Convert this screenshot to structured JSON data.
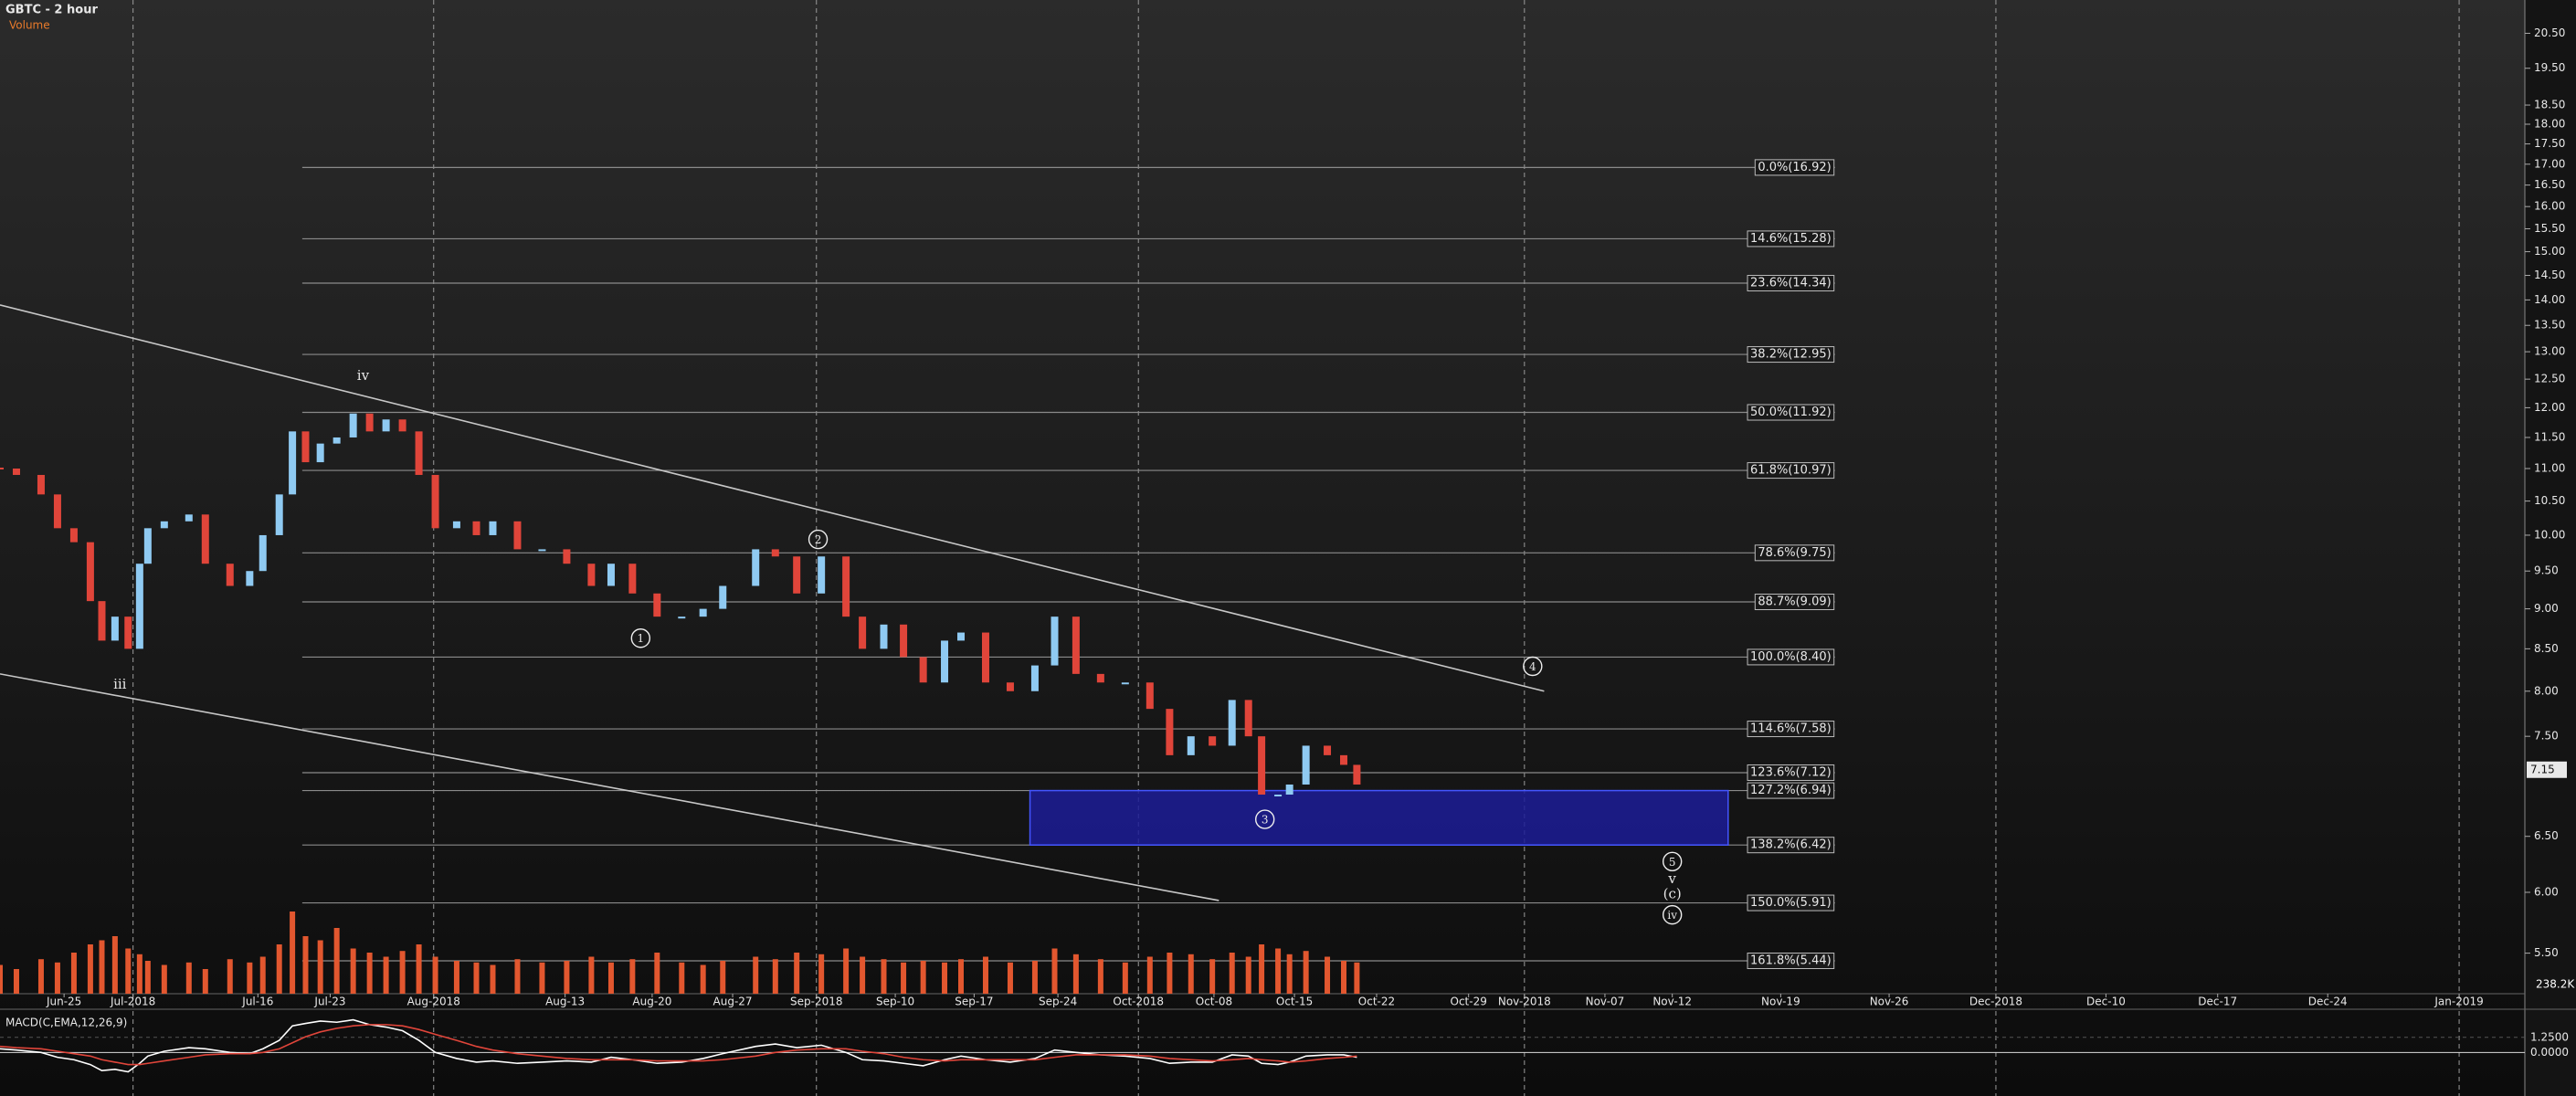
{
  "chart_data": {
    "type": "price-bars",
    "title": "GBTC - 2 hour",
    "subtitle": "Volume",
    "log_scale": true,
    "xlim": [
      0,
      1537
    ],
    "ylim": [
      5.19,
      21.5
    ],
    "xticks": [
      {
        "value": 39,
        "label": "Jun-25"
      },
      {
        "value": 81,
        "label": "Jul-2018"
      },
      {
        "value": 157,
        "label": "Jul-16"
      },
      {
        "value": 201,
        "label": "Jul-23"
      },
      {
        "value": 264,
        "label": "Aug-2018"
      },
      {
        "value": 344,
        "label": "Aug-13"
      },
      {
        "value": 397,
        "label": "Aug-20"
      },
      {
        "value": 446,
        "label": "Aug-27"
      },
      {
        "value": 497,
        "label": "Sep-2018"
      },
      {
        "value": 545,
        "label": "Sep-10"
      },
      {
        "value": 593,
        "label": "Sep-17"
      },
      {
        "value": 644,
        "label": "Sep-24"
      },
      {
        "value": 693,
        "label": "Oct-2018"
      },
      {
        "value": 739,
        "label": "Oct-08"
      },
      {
        "value": 788,
        "label": "Oct-15"
      },
      {
        "value": 838,
        "label": "Oct-22"
      },
      {
        "value": 894,
        "label": "Oct-29"
      },
      {
        "value": 928,
        "label": "Nov-2018"
      },
      {
        "value": 977,
        "label": "Nov-07"
      },
      {
        "value": 1018,
        "label": "Nov-12"
      },
      {
        "value": 1084,
        "label": "Nov-19"
      },
      {
        "value": 1150,
        "label": "Nov-26"
      },
      {
        "value": 1215,
        "label": "Dec-2018"
      },
      {
        "value": 1282,
        "label": "Dec-10"
      },
      {
        "value": 1350,
        "label": "Dec-17"
      },
      {
        "value": 1417,
        "label": "Dec-24"
      },
      {
        "value": 1497,
        "label": "Jan-2019"
      }
    ],
    "yticks": [
      {
        "value": 5.5,
        "label": "5.50"
      },
      {
        "value": 6,
        "label": "6.00"
      },
      {
        "value": 6.5,
        "label": "6.50"
      },
      {
        "value": 7.5,
        "label": "7.50"
      },
      {
        "value": 8,
        "label": "8.00"
      },
      {
        "value": 8.5,
        "label": "8.50"
      },
      {
        "value": 9,
        "label": "9.00"
      },
      {
        "value": 9.5,
        "label": "9.50"
      },
      {
        "value": 10,
        "label": "10.00"
      },
      {
        "value": 10.5,
        "label": "10.50"
      },
      {
        "value": 11,
        "label": "11.00"
      },
      {
        "value": 11.5,
        "label": "11.50"
      },
      {
        "value": 12,
        "label": "12.00"
      },
      {
        "value": 12.5,
        "label": "12.50"
      },
      {
        "value": 13,
        "label": "13.00"
      },
      {
        "value": 13.5,
        "label": "13.50"
      },
      {
        "value": 14,
        "label": "14.00"
      },
      {
        "value": 14.5,
        "label": "14.50"
      },
      {
        "value": 15,
        "label": "15.00"
      },
      {
        "value": 15.5,
        "label": "15.50"
      },
      {
        "value": 16,
        "label": "16.00"
      },
      {
        "value": 16.5,
        "label": "16.50"
      },
      {
        "value": 17,
        "label": "17.00"
      },
      {
        "value": 17.5,
        "label": "17.50"
      },
      {
        "value": 18,
        "label": "18.00"
      },
      {
        "value": 18.5,
        "label": "18.50"
      },
      {
        "value": 19.5,
        "label": "19.50"
      },
      {
        "value": 20.5,
        "label": "20.50"
      }
    ],
    "x": [
      0,
      10,
      25,
      35,
      45,
      55,
      62,
      70,
      78,
      85,
      90,
      100,
      115,
      125,
      140,
      152,
      160,
      170,
      178,
      186,
      195,
      205,
      215,
      225,
      235,
      245,
      255,
      265,
      278,
      290,
      300,
      315,
      330,
      345,
      360,
      372,
      385,
      400,
      415,
      428,
      440,
      460,
      472,
      485,
      500,
      515,
      525,
      538,
      550,
      562,
      575,
      585,
      600,
      615,
      630,
      642,
      655,
      670,
      685,
      700,
      712,
      725,
      738,
      750,
      760,
      768,
      778,
      785,
      795,
      808,
      818,
      826
    ],
    "values": [
      11.0,
      10.9,
      10.6,
      10.1,
      9.9,
      9.1,
      8.6,
      8.9,
      8.5,
      9.6,
      10.1,
      10.2,
      10.3,
      9.6,
      9.3,
      9.5,
      10.0,
      10.6,
      11.6,
      11.1,
      11.4,
      11.5,
      11.9,
      11.6,
      11.8,
      11.6,
      10.9,
      10.1,
      10.2,
      10.0,
      10.2,
      9.8,
      9.8,
      9.6,
      9.3,
      9.6,
      9.2,
      8.9,
      8.9,
      9.0,
      9.3,
      9.8,
      9.7,
      9.2,
      9.7,
      8.9,
      8.5,
      8.8,
      8.4,
      8.1,
      8.6,
      8.7,
      8.1,
      8.0,
      8.3,
      8.9,
      8.2,
      8.1,
      8.1,
      7.8,
      7.3,
      7.5,
      7.4,
      7.9,
      7.5,
      6.9,
      6.9,
      7.0,
      7.4,
      7.3,
      7.2,
      7.0
    ],
    "up_color": "#8fcaf2",
    "down_color": "#e0453a",
    "last_price": 7.15,
    "volume": {
      "label": "238.2K",
      "color": "#e2572f",
      "ylim": [
        0,
        1100
      ],
      "values": [
        350,
        300,
        420,
        380,
        500,
        600,
        650,
        700,
        550,
        480,
        400,
        350,
        380,
        300,
        420,
        380,
        450,
        600,
        1000,
        700,
        650,
        800,
        550,
        500,
        450,
        520,
        600,
        450,
        400,
        380,
        350,
        420,
        380,
        400,
        450,
        380,
        420,
        500,
        380,
        350,
        400,
        450,
        420,
        500,
        480,
        550,
        450,
        420,
        380,
        400,
        380,
        420,
        450,
        380,
        400,
        550,
        480,
        420,
        380,
        450,
        500,
        480,
        420,
        500,
        450,
        600,
        550,
        480,
        520,
        450,
        400,
        380
      ]
    },
    "fib_range": [
      184,
      1117
    ],
    "fib_levels": [
      {
        "label": "0.0%(16.92)",
        "value": 16.92
      },
      {
        "label": "14.6%(15.28)",
        "value": 15.28
      },
      {
        "label": "23.6%(14.34)",
        "value": 14.34
      },
      {
        "label": "38.2%(12.95)",
        "value": 12.95
      },
      {
        "label": "50.0%(11.92)",
        "value": 11.92
      },
      {
        "label": "61.8%(10.97)",
        "value": 10.97
      },
      {
        "label": "78.6%(9.75)",
        "value": 9.75
      },
      {
        "label": "88.7%(9.09)",
        "value": 9.09
      },
      {
        "label": "100.0%(8.40)",
        "value": 8.4
      },
      {
        "label": "114.6%(7.58)",
        "value": 7.58
      },
      {
        "label": "123.6%(7.12)",
        "value": 7.12
      },
      {
        "label": "127.2%(6.94)",
        "value": 6.94
      },
      {
        "label": "138.2%(6.42)",
        "value": 6.42
      },
      {
        "label": "150.0%(5.91)",
        "value": 5.91
      },
      {
        "label": "161.8%(5.44)",
        "value": 5.44
      }
    ],
    "zone": {
      "x": [
        627,
        1052
      ],
      "y": [
        6.42,
        6.94
      ],
      "color": "#1c1c96"
    },
    "trendlines": [
      {
        "x": [
          0,
          940
        ],
        "y": [
          13.9,
          8.0
        ]
      },
      {
        "x": [
          0,
          742
        ],
        "y": [
          8.2,
          5.93
        ]
      }
    ],
    "waves": [
      {
        "label": "iv",
        "x": 221,
        "y": 12.57,
        "circled": false
      },
      {
        "label": "iii",
        "x": 73,
        "y": 8.08,
        "circled": false
      },
      {
        "label": "1",
        "x": 390,
        "y": 8.63,
        "circled": true
      },
      {
        "label": "2",
        "x": 498,
        "y": 9.94,
        "circled": true
      },
      {
        "label": "3",
        "x": 770,
        "y": 6.66,
        "circled": true
      },
      {
        "label": "4",
        "x": 933,
        "y": 8.29,
        "circled": true
      },
      {
        "label": "5",
        "x": 1018,
        "y": 6.27,
        "circled": true
      },
      {
        "label": "v",
        "x": 1018,
        "y": 6.12,
        "circled": false
      },
      {
        "label": "(c)",
        "x": 1018,
        "y": 5.99,
        "circled": false
      },
      {
        "label": "iv",
        "x": 1018,
        "y": 5.81,
        "circled": true
      }
    ],
    "macd": {
      "title": "MACD(C,EMA,12,26,9)",
      "ylim": [
        -3.3,
        3.5
      ],
      "yticks": [
        {
          "value": 1.25,
          "label": "1.2500"
        },
        {
          "value": 0,
          "label": "0.0000"
        }
      ],
      "series": [
        {
          "name": "MACD",
          "color": "#ffffff",
          "values": [
            0.3,
            0.2,
            0.0,
            -0.4,
            -0.6,
            -1.0,
            -1.5,
            -1.4,
            -1.6,
            -0.9,
            -0.3,
            0.1,
            0.4,
            0.3,
            0.0,
            -0.1,
            0.3,
            1.0,
            2.2,
            2.4,
            2.6,
            2.5,
            2.7,
            2.3,
            2.1,
            1.8,
            1.0,
            0.0,
            -0.5,
            -0.8,
            -0.7,
            -0.9,
            -0.8,
            -0.7,
            -0.8,
            -0.4,
            -0.6,
            -0.9,
            -0.8,
            -0.5,
            -0.1,
            0.5,
            0.7,
            0.4,
            0.6,
            0.0,
            -0.6,
            -0.7,
            -0.9,
            -1.1,
            -0.6,
            -0.3,
            -0.6,
            -0.8,
            -0.5,
            0.2,
            0.0,
            -0.2,
            -0.3,
            -0.5,
            -0.9,
            -0.8,
            -0.8,
            -0.2,
            -0.3,
            -0.9,
            -1.0,
            -0.8,
            -0.3,
            -0.2,
            -0.2,
            -0.4
          ]
        },
        {
          "name": "Signal",
          "color": "#e0453a",
          "values": [
            0.5,
            0.4,
            0.3,
            0.1,
            -0.1,
            -0.3,
            -0.6,
            -0.8,
            -1.0,
            -1.0,
            -0.9,
            -0.7,
            -0.4,
            -0.2,
            -0.1,
            -0.1,
            0.0,
            0.3,
            0.8,
            1.3,
            1.7,
            2.0,
            2.2,
            2.3,
            2.3,
            2.2,
            1.9,
            1.5,
            1.0,
            0.5,
            0.2,
            -0.1,
            -0.3,
            -0.5,
            -0.6,
            -0.6,
            -0.6,
            -0.7,
            -0.7,
            -0.7,
            -0.6,
            -0.3,
            0.0,
            0.2,
            0.3,
            0.3,
            0.1,
            -0.1,
            -0.4,
            -0.6,
            -0.7,
            -0.6,
            -0.6,
            -0.6,
            -0.6,
            -0.4,
            -0.2,
            -0.2,
            -0.2,
            -0.3,
            -0.5,
            -0.6,
            -0.7,
            -0.6,
            -0.5,
            -0.6,
            -0.7,
            -0.8,
            -0.7,
            -0.5,
            -0.4,
            -0.3
          ]
        }
      ]
    }
  }
}
